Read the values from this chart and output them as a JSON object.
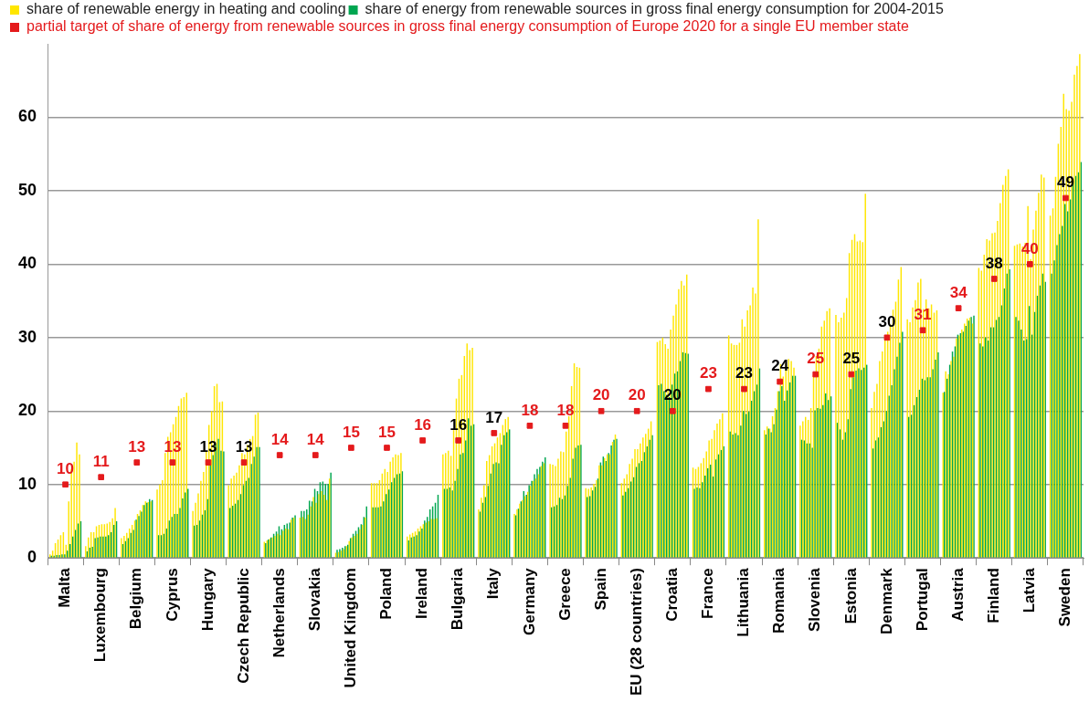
{
  "chart_data": {
    "type": "bar",
    "categories": [
      "Malta",
      "Luxembourg",
      "Belgium",
      "Cyprus",
      "Hungary",
      "Czech Republic",
      "Netherlands",
      "Slovakia",
      "United Kingdom",
      "Poland",
      "Ireland",
      "Bulgaria",
      "Italy",
      "Germany",
      "Greece",
      "Spain",
      "EU (28 countries)",
      "Croatia",
      "France",
      "Lithuania",
      "Romania",
      "Slovenia",
      "Estonia",
      "Denmark",
      "Portugal",
      "Austria",
      "Finland",
      "Latvia",
      "Sweden"
    ],
    "ylim": [
      0,
      70
    ],
    "yticks": [
      0,
      10,
      20,
      30,
      40,
      50,
      60
    ],
    "grid": "y",
    "legend": "top left",
    "series": [
      {
        "name": "share of renewable energy in heating and cooling",
        "color": "#ffe600",
        "values": [
          0.5,
          1.6,
          2.7,
          9.3,
          6.4,
          9.9,
          2.2,
          5.5,
          0.7,
          10.2,
          2.9,
          14.1,
          6.6,
          6.0,
          12.8,
          9.5,
          10.2,
          29.4,
          12.3,
          30.3,
          17.4,
          18.0,
          33.1,
          20.4,
          32.5,
          22.5,
          39.5,
          42.5,
          46.6
        ]
      },
      {
        "name": "share of energy from renewable sources in gross final energy consumption for 2004-2015",
        "color": "#00a651",
        "values": [
          0.3,
          0.9,
          1.9,
          3.1,
          4.4,
          6.8,
          2.0,
          6.4,
          1.1,
          6.9,
          2.4,
          9.4,
          6.3,
          5.8,
          6.9,
          8.3,
          8.5,
          23.5,
          9.4,
          17.2,
          16.8,
          16.1,
          18.4,
          14.9,
          19.2,
          22.6,
          29.2,
          32.8,
          38.7
        ]
      },
      {
        "color": "#ffe600",
        "values": [
          1.0,
          2.8,
          3.0,
          10.0,
          7.5,
          10.8,
          2.4,
          5.6,
          0.8,
          10.2,
          3.2,
          14.3,
          8.2,
          6.6,
          12.7,
          9.4,
          10.8,
          29.6,
          12.1,
          29.2,
          17.9,
          18.6,
          32.1,
          22.6,
          32.1,
          25.4,
          39.1,
          42.7,
          47.6
        ]
      },
      {
        "color": "#00a651",
        "values": [
          0.3,
          1.4,
          2.3,
          3.1,
          4.5,
          7.1,
          2.5,
          6.4,
          1.2,
          6.9,
          2.8,
          9.4,
          7.5,
          6.7,
          7.0,
          8.4,
          9.0,
          23.7,
          9.6,
          16.8,
          17.6,
          16.0,
          17.5,
          16.0,
          19.5,
          24.4,
          28.8,
          32.3,
          40.5
        ]
      },
      {
        "color": "#ffe600",
        "values": [
          2.0,
          3.5,
          3.4,
          10.6,
          8.8,
          11.2,
          2.6,
          5.3,
          1.0,
          10.2,
          3.4,
          14.6,
          9.9,
          7.4,
          12.5,
          9.6,
          11.4,
          30.0,
          12.4,
          29.0,
          17.6,
          19.2,
          32.7,
          23.7,
          34.1,
          25.0,
          41.3,
          42.8,
          51.9
        ]
      },
      {
        "color": "#00a651",
        "values": [
          0.4,
          1.5,
          2.7,
          3.3,
          5.1,
          7.4,
          2.8,
          6.6,
          1.4,
          6.9,
          2.9,
          9.6,
          8.3,
          7.7,
          7.2,
          9.2,
          9.5,
          22.7,
          9.5,
          17.0,
          17.1,
          15.6,
          16.1,
          16.4,
          20.8,
          26.3,
          30.0,
          31.1,
          42.6
        ]
      },
      {
        "color": "#ffe600",
        "values": [
          2.5,
          3.5,
          4.0,
          14.3,
          10.5,
          11.6,
          2.8,
          5.9,
          1.2,
          10.6,
          3.6,
          13.9,
          13.2,
          7.9,
          13.5,
          10.1,
          12.8,
          29.1,
          12.9,
          29.0,
          19.3,
          18.8,
          33.4,
          26.8,
          35.1,
          26.8,
          43.4,
          42.4,
          56.4
        ]
      },
      {
        "color": "#00a651",
        "values": [
          0.4,
          2.7,
          3.4,
          4.0,
          5.9,
          7.9,
          3.3,
          7.8,
          1.6,
          7.0,
          3.1,
          9.2,
          9.8,
          9.1,
          8.2,
          9.7,
          10.4,
          22.2,
          10.3,
          16.7,
          18.2,
          15.6,
          17.1,
          17.8,
          21.9,
          28.1,
          29.6,
          29.6,
          44.1
        ]
      },
      {
        "color": "#ffe600",
        "values": [
          3.1,
          4.3,
          4.5,
          16.5,
          11.7,
          12.6,
          3.0,
          7.0,
          1.6,
          11.5,
          4.0,
          17.4,
          14.0,
          8.4,
          14.5,
          10.6,
          13.5,
          28.5,
          13.6,
          29.3,
          20.4,
          20.4,
          35.4,
          28.1,
          37.5,
          27.4,
          43.2,
          42.9,
          58.7
        ]
      },
      {
        "color": "#00a651",
        "values": [
          0.5,
          2.8,
          3.8,
          5.1,
          6.5,
          8.7,
          3.6,
          7.7,
          1.8,
          7.7,
          3.6,
          10.5,
          11.5,
          8.6,
          8.0,
          10.8,
          11.0,
          21.9,
          11.2,
          18.0,
          20.2,
          15.0,
          18.9,
          18.6,
          22.9,
          28.8,
          31.4,
          29.8,
          45.2
        ]
      },
      {
        "color": "#ffe600",
        "values": [
          3.5,
          4.5,
          5.1,
          17.1,
          14.5,
          14.3,
          3.3,
          8.3,
          2.3,
          12.1,
          4.3,
          21.7,
          15.2,
          9.0,
          14.4,
          12.6,
          14.8,
          31.1,
          14.5,
          32.5,
          22.7,
          24.9,
          41.5,
          29.9,
          38.0,
          29.9,
          44.2,
          47.9,
          63.2
        ]
      },
      {
        "color": "#00a651",
        "values": [
          0.5,
          2.9,
          5.2,
          5.6,
          8.0,
          9.9,
          4.3,
          9.4,
          2.7,
          8.7,
          4.0,
          12.1,
          12.8,
          9.9,
          8.5,
          13.0,
          12.4,
          23.6,
          12.2,
          20.0,
          22.7,
          20.1,
          23.0,
          20.0,
          24.4,
          30.4,
          31.4,
          34.3,
          48.2
        ]
      },
      {
        "color": "#ffe600",
        "values": [
          1.8,
          4.6,
          6.0,
          18.2,
          18.1,
          14.1,
          3.1,
          7.5,
          2.8,
          11.7,
          4.6,
          24.4,
          15.6,
          9.8,
          17.2,
          12.6,
          14.8,
          33.0,
          16.0,
          31.5,
          26.4,
          27.5,
          43.3,
          30.8,
          33.9,
          30.3,
          44.3,
          40.7,
          61.1
        ]
      },
      {
        "color": "#00a651",
        "values": [
          1.0,
          2.9,
          5.7,
          6.0,
          12.7,
          10.5,
          3.9,
          9.1,
          3.3,
          9.3,
          5.1,
          14.1,
          13.0,
          10.5,
          9.8,
          13.8,
          12.9,
          25.1,
          12.7,
          19.6,
          23.4,
          20.4,
          24.6,
          22.1,
          24.2,
          30.6,
          32.4,
          30.4,
          47.2
        ]
      },
      {
        "color": "#ffe600",
        "values": [
          7.7,
          4.6,
          6.5,
          19.2,
          20.0,
          15.4,
          3.7,
          8.7,
          3.0,
          13.1,
          4.8,
          24.9,
          16.4,
          10.5,
          19.3,
          13.6,
          15.6,
          34.5,
          16.2,
          33.7,
          24.7,
          28.5,
          44.1,
          31.8,
          35.2,
          31.1,
          45.9,
          44.7,
          60.9
        ]
      },
      {
        "color": "#00a651",
        "values": [
          1.9,
          2.9,
          6.3,
          6.0,
          14.0,
          10.9,
          4.5,
          10.3,
          3.7,
          10.3,
          5.6,
          14.3,
          12.9,
          11.4,
          10.9,
          13.2,
          13.2,
          25.4,
          11.1,
          19.9,
          21.4,
          20.3,
          25.5,
          23.5,
          24.6,
          30.8,
          32.8,
          33.5,
          48.8
        ]
      },
      {
        "color": "#ffe600",
        "values": [
          12.1,
          4.7,
          7.2,
          20.7,
          23.4,
          16.2,
          4.0,
          9.1,
          3.3,
          13.7,
          5.0,
          27.5,
          17.0,
          10.8,
          23.4,
          14.1,
          16.4,
          36.6,
          17.4,
          34.4,
          26.5,
          31.5,
          43.1,
          33.8,
          34.0,
          31.9,
          48.3,
          47.3,
          62.1
        ]
      },
      {
        "color": "#00a651",
        "values": [
          2.9,
          3.1,
          7.2,
          6.8,
          15.5,
          12.8,
          4.7,
          10.4,
          4.2,
          10.9,
          6.6,
          16.0,
          15.4,
          12.1,
          13.5,
          14.3,
          14.4,
          26.8,
          13.4,
          21.4,
          22.8,
          20.8,
          25.8,
          25.7,
          24.6,
          31.6,
          34.4,
          35.7,
          51.1
        ]
      },
      {
        "color": "#ffe600",
        "values": [
          13.1,
          4.9,
          7.7,
          21.7,
          23.7,
          16.6,
          3.9,
          8.6,
          3.9,
          14.1,
          5.3,
          29.2,
          18.1,
          11.4,
          26.5,
          14.1,
          16.9,
          37.7,
          18.3,
          36.8,
          27.1,
          32.3,
          43.2,
          34.9,
          34.5,
          32.6,
          50.8,
          49.7,
          65.8
        ]
      },
      {
        "color": "#00a651",
        "values": [
          3.8,
          3.5,
          7.5,
          8.1,
          16.2,
          13.8,
          4.8,
          10.1,
          4.6,
          11.4,
          7.0,
          19.0,
          16.7,
          12.4,
          15.0,
          15.3,
          15.2,
          28.0,
          14.1,
          22.7,
          23.9,
          22.4,
          25.6,
          27.4,
          25.7,
          32.3,
          36.7,
          37.1,
          52.0
        ]
      },
      {
        "color": "#ffe600",
        "values": [
          15.7,
          5.4,
          7.6,
          21.9,
          21.2,
          19.5,
          5.2,
          7.9,
          4.5,
          14.0,
          5.3,
          28.3,
          18.9,
          12.5,
          26.0,
          15.8,
          17.6,
          37.1,
          18.9,
          36.0,
          26.8,
          33.6,
          43.0,
          37.9,
          33.4,
          32.7,
          52.0,
          52.2,
          67.0
        ]
      },
      {
        "color": "#00a651",
        "values": [
          4.7,
          4.5,
          8.0,
          8.9,
          14.6,
          15.1,
          5.5,
          10.1,
          5.6,
          11.5,
          7.5,
          18.0,
          17.1,
          13.1,
          15.3,
          16.1,
          16.1,
          27.9,
          14.7,
          23.6,
          24.8,
          21.5,
          25.9,
          29.3,
          27.0,
          32.8,
          38.7,
          38.7,
          52.5
        ]
      },
      {
        "color": "#ffe600",
        "values": [
          14.1,
          6.8,
          7.7,
          22.5,
          21.3,
          19.8,
          5.5,
          10.8,
          5.5,
          14.3,
          5.4,
          28.6,
          19.2,
          12.9,
          25.9,
          16.8,
          18.6,
          38.6,
          19.7,
          46.1,
          25.9,
          34.0,
          49.6,
          39.6,
          33.7,
          31.9,
          52.9,
          51.8,
          68.6
        ]
      },
      {
        "color": "#00a651",
        "values": [
          5.0,
          5.0,
          7.9,
          9.4,
          14.5,
          15.1,
          5.8,
          11.6,
          7.0,
          11.8,
          8.6,
          18.2,
          17.5,
          13.7,
          15.4,
          16.2,
          16.7,
          27.8,
          15.2,
          25.8,
          24.8,
          22.0,
          26.3,
          30.8,
          28.0,
          33.0,
          39.3,
          37.6,
          53.9
        ]
      },
      {
        "type": "scatter",
        "marker": "square",
        "name": "partial target of share of energy from renewable sources in gross final energy consumption of Europe 2020 for a single EU member state",
        "color": "#e41a1c",
        "values": [
          10,
          11,
          13,
          13,
          13,
          13,
          14,
          14,
          15,
          15,
          16,
          16,
          17,
          18,
          18,
          20,
          20,
          20,
          23,
          23,
          24,
          25,
          25,
          30,
          31,
          34,
          38,
          40,
          49
        ],
        "value_labels": [
          "10",
          "11",
          "13",
          "13",
          "13",
          "13",
          "14",
          "14",
          "15",
          "15",
          "16",
          "16",
          "17",
          "18",
          "18",
          "20",
          "20",
          "20",
          "23",
          "23",
          "24",
          "25",
          "25",
          "30",
          "31",
          "34",
          "38",
          "40",
          "49"
        ]
      }
    ]
  }
}
